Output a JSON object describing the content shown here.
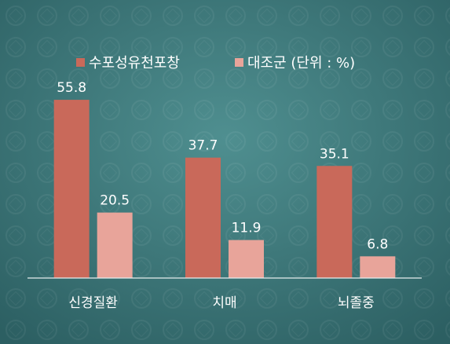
{
  "chart_data": {
    "type": "bar",
    "categories": [
      "신경질환",
      "치매",
      "뇌졸중"
    ],
    "series": [
      {
        "name": "수포성유천포창",
        "color": "#c9695a",
        "values": [
          55.8,
          37.7,
          35.1
        ]
      },
      {
        "name": "대조군 (단위 : %)",
        "color": "#e8a49a",
        "values": [
          20.5,
          11.9,
          6.8
        ]
      }
    ],
    "ylim": [
      0,
      60
    ]
  }
}
